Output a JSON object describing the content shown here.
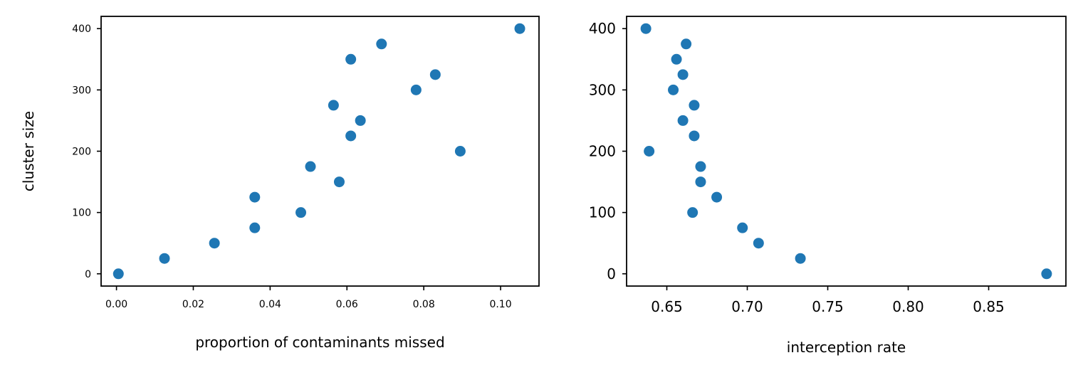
{
  "chart_data": [
    {
      "type": "scatter",
      "xlabel": "proportion of contaminants missed",
      "ylabel": "cluster size",
      "xlim": [
        -0.004,
        0.11
      ],
      "ylim": [
        -20,
        420
      ],
      "xticks": [
        "0.00",
        "0.02",
        "0.04",
        "0.06",
        "0.08",
        "0.10"
      ],
      "yticks": [
        "0",
        "100",
        "200",
        "300",
        "400"
      ],
      "grid": false,
      "color": "#1f77b4",
      "series": [
        {
          "points": [
            {
              "x": 0.0005,
              "y": 0
            },
            {
              "x": 0.0125,
              "y": 25
            },
            {
              "x": 0.0255,
              "y": 50
            },
            {
              "x": 0.036,
              "y": 75
            },
            {
              "x": 0.048,
              "y": 100
            },
            {
              "x": 0.036,
              "y": 125
            },
            {
              "x": 0.058,
              "y": 150
            },
            {
              "x": 0.0505,
              "y": 175
            },
            {
              "x": 0.0895,
              "y": 200
            },
            {
              "x": 0.061,
              "y": 225
            },
            {
              "x": 0.0635,
              "y": 250
            },
            {
              "x": 0.0565,
              "y": 275
            },
            {
              "x": 0.078,
              "y": 300
            },
            {
              "x": 0.083,
              "y": 325
            },
            {
              "x": 0.061,
              "y": 350
            },
            {
              "x": 0.069,
              "y": 375
            },
            {
              "x": 0.105,
              "y": 400
            }
          ]
        }
      ]
    },
    {
      "type": "scatter",
      "xlabel": "interception rate",
      "ylabel": "",
      "xlim": [
        0.625,
        0.898
      ],
      "ylim": [
        -20,
        420
      ],
      "xticks": [
        "0.65",
        "0.70",
        "0.75",
        "0.80",
        "0.85"
      ],
      "yticks": [
        "0",
        "100",
        "200",
        "300",
        "400"
      ],
      "grid": false,
      "color": "#1f77b4",
      "series": [
        {
          "points": [
            {
              "x": 0.886,
              "y": 0
            },
            {
              "x": 0.733,
              "y": 25
            },
            {
              "x": 0.707,
              "y": 50
            },
            {
              "x": 0.697,
              "y": 75
            },
            {
              "x": 0.666,
              "y": 100
            },
            {
              "x": 0.681,
              "y": 125
            },
            {
              "x": 0.671,
              "y": 150
            },
            {
              "x": 0.671,
              "y": 175
            },
            {
              "x": 0.639,
              "y": 200
            },
            {
              "x": 0.667,
              "y": 225
            },
            {
              "x": 0.66,
              "y": 250
            },
            {
              "x": 0.667,
              "y": 275
            },
            {
              "x": 0.654,
              "y": 300
            },
            {
              "x": 0.66,
              "y": 325
            },
            {
              "x": 0.656,
              "y": 350
            },
            {
              "x": 0.662,
              "y": 375
            },
            {
              "x": 0.637,
              "y": 400
            }
          ]
        }
      ]
    }
  ]
}
